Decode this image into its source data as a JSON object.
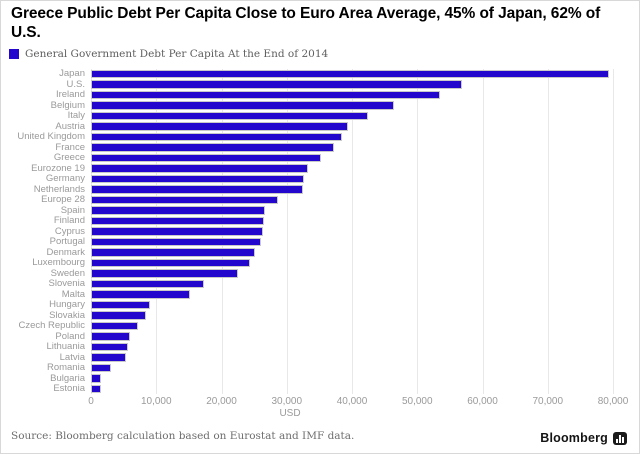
{
  "header": {
    "title": "Greece Public Debt Per Capita Close to Euro Area Average, 45% of Japan, 62% of U.S.",
    "title_lines": [
      "Greece Public Debt Per Capita Close to Euro Area Average, 45% of",
      "Japan, 62% of U.S."
    ]
  },
  "legend": {
    "label": "General Government Debt Per Capita At the End of 2014",
    "swatch_color": "#2407cd"
  },
  "chart_data": {
    "type": "bar",
    "orientation": "horizontal",
    "title": "Greece Public Debt Per Capita Close to Euro Area Average, 45% of Japan, 62% of U.S.",
    "legend_entry": "General Government Debt Per Capita At the End of 2014",
    "xlabel": "USD",
    "xlim": [
      0,
      80000
    ],
    "x_ticks": [
      "0",
      "10,000",
      "20,000",
      "30,000",
      "40,000",
      "50,000",
      "60,000",
      "70,000",
      "80,000"
    ],
    "grid": true,
    "legend_position": "top-left",
    "bar_color": "#2407cd",
    "gridline_color": "#e8e8e8",
    "categories": [
      "Japan",
      "U.S.",
      "Ireland",
      "Belgium",
      "Italy",
      "Austria",
      "United Kingdom",
      "France",
      "Greece",
      "Eurozone 19",
      "Germany",
      "Netherlands",
      "Europe 28",
      "Spain",
      "Finland",
      "Cyprus",
      "Portugal",
      "Denmark",
      "Luxembourg",
      "Sweden",
      "Slovenia",
      "Malta",
      "Hungary",
      "Slovakia",
      "Czech Republic",
      "Poland",
      "Lithuania",
      "Latvia",
      "Romania",
      "Bulgaria",
      "Estonia"
    ],
    "values": [
      79400,
      56800,
      53500,
      46400,
      42400,
      39400,
      38500,
      37300,
      35200,
      33300,
      32600,
      32500,
      28700,
      26700,
      26500,
      26400,
      26000,
      25100,
      24300,
      22500,
      17300,
      15100,
      9100,
      8500,
      7200,
      6000,
      5700,
      5400,
      3000,
      1600,
      1500
    ]
  },
  "footer": {
    "source": "Source: Bloomberg calculation based on Eurostat and IMF data.",
    "brand": "Bloomberg",
    "brand_icon": "bar-chart-icon"
  }
}
